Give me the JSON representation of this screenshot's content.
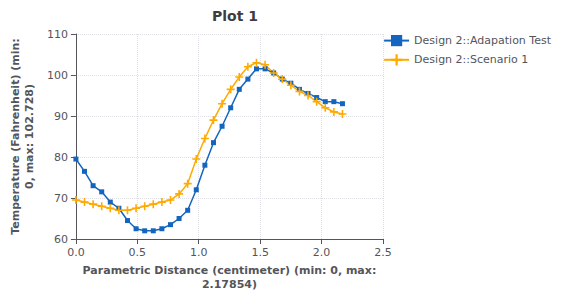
{
  "chart_data": {
    "type": "line",
    "title": "Plot 1",
    "xlabel": "Parametric Distance (centimeter) (min: 0, max:\n2.17854)",
    "ylabel": "Temperature (Fahrenheit) (min:\n0, max: 102.728)",
    "xlim": [
      0,
      2.5
    ],
    "ylim": [
      60,
      110
    ],
    "xticks": [
      {
        "value": 0,
        "label": "0.0"
      },
      0.5,
      {
        "value": 1.0,
        "label": "1.0"
      },
      1.5,
      {
        "value": 2.0,
        "label": "2.0"
      },
      2.5
    ],
    "yticks": [
      60,
      70,
      80,
      90,
      100,
      110
    ],
    "grid": true,
    "legend": "right",
    "x": [
      0.0,
      0.07,
      0.14,
      0.21,
      0.28,
      0.35,
      0.42,
      0.49,
      0.56,
      0.63,
      0.7,
      0.77,
      0.84,
      0.91,
      0.98,
      1.05,
      1.12,
      1.19,
      1.26,
      1.33,
      1.4,
      1.47,
      1.54,
      1.61,
      1.68,
      1.75,
      1.82,
      1.89,
      1.96,
      2.03,
      2.1,
      2.17
    ],
    "series": [
      {
        "name": "Design 2::Adapation Test",
        "color": "#1465c0",
        "marker": "square",
        "values": [
          79.5,
          76.5,
          73.0,
          71.5,
          69.0,
          67.5,
          64.5,
          62.5,
          62.0,
          62.0,
          62.5,
          63.5,
          65.0,
          67.0,
          72.0,
          78.0,
          83.5,
          87.5,
          92.0,
          96.5,
          99.0,
          101.5,
          101.5,
          100.5,
          99.0,
          98.0,
          96.5,
          95.5,
          94.5,
          93.5,
          93.5,
          93.0
        ]
      },
      {
        "name": "Design 2::Scenario 1",
        "color": "#ffaa00",
        "marker": "plus",
        "values": [
          69.5,
          69.0,
          68.5,
          68.0,
          67.5,
          67.0,
          67.0,
          67.5,
          68.0,
          68.5,
          69.0,
          69.5,
          71.0,
          73.5,
          79.5,
          84.5,
          89.0,
          93.0,
          96.5,
          99.5,
          102.0,
          103.0,
          102.5,
          100.5,
          99.0,
          97.5,
          96.0,
          95.0,
          93.5,
          92.0,
          91.0,
          90.5
        ]
      }
    ]
  }
}
